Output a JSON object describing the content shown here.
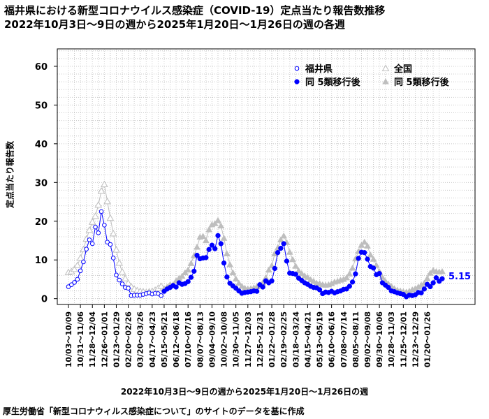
{
  "page": {
    "title_line1": "福井県における新型コロナウイルス感染症（COVID-19）定点当たり報告数推移",
    "title_line2": "2022年10月3日～9日の週から2025年1月20日～1月26日の週の各週",
    "source": "厚生労働省「新型コロナウィルス感染症について」のサイトのデータを基に作成"
  },
  "chart_data": {
    "type": "scatter",
    "xlabel": "2022年10月3日～9日の週から2025年1月20日～1月26日の週",
    "ylabel": "定点当たり報告数",
    "ylim": [
      -1.5,
      64.5
    ],
    "yticks": [
      0,
      10,
      20,
      30,
      40,
      50,
      60
    ],
    "grid": true,
    "legend_position": "top-right",
    "x_tick_labels": [
      "10/03～10/09",
      "10/31～11/06",
      "11/28～12/04",
      "12/26～01/01",
      "01/23～01/29",
      "02/20～02/26",
      "03/20～03/26",
      "04/17～04/23",
      "05/15～05/21",
      "06/12～06/18",
      "07/10～07/16",
      "08/07～08/13",
      "09/04～09/10",
      "10/02～10/08",
      "10/30～11/05",
      "11/27～12/03",
      "12/25～12/31",
      "01/22～01/28",
      "02/19～02/25",
      "03/18～03/24",
      "04/15～04/21",
      "05/13～05/19",
      "06/10～06/16",
      "07/08～07/14",
      "08/05～08/11",
      "09/02～09/08",
      "09/30～10/06",
      "10/28～11/03",
      "11/25～12/01",
      "12/23～12/29",
      "01/20～01/26"
    ],
    "x_tick_step_weeks": 4,
    "series": [
      {
        "name": "福井県",
        "marker": "open-circle",
        "color": "#0000ff",
        "x_start": 0,
        "values": [
          3.1,
          3.6,
          4.2,
          5.0,
          7.2,
          9.5,
          12.8,
          15.2,
          14.2,
          18.5,
          17.0,
          22.5,
          19.0,
          14.6,
          14.0,
          10.5,
          6.1,
          4.8,
          3.8,
          2.9,
          2.7,
          0.8,
          0.9,
          0.9,
          0.9,
          1.1,
          1.3,
          1.5,
          1.2,
          1.4,
          1.3,
          0.8
        ]
      },
      {
        "name": "同 5類移行後",
        "marker": "filled-circle",
        "color": "#0000ff",
        "x_start": 32,
        "values": [
          1.9,
          2.5,
          2.9,
          3.4,
          3.0,
          4.1,
          3.7,
          3.9,
          4.4,
          5.5,
          7.1,
          11.2,
          10.3,
          10.5,
          10.6,
          12.7,
          13.8,
          12.9,
          16.3,
          14.2,
          9.2,
          5.6,
          4.0,
          3.3,
          2.7,
          2.0,
          1.4,
          1.6,
          1.7,
          1.8,
          2.0,
          1.9,
          3.6,
          3.0,
          4.6,
          4.1,
          4.6,
          7.8,
          11.9,
          13.0,
          14.2,
          9.7,
          6.6,
          6.5,
          6.3,
          5.3,
          4.7,
          4.1,
          3.7,
          3.2,
          2.9,
          2.8,
          2.3,
          1.3,
          1.7,
          1.6,
          1.9,
          1.5,
          1.8,
          2.0,
          2.4,
          2.5,
          3.2,
          4.3,
          6.4,
          10.4,
          12.0,
          11.9,
          10.2,
          8.3,
          7.9,
          6.2,
          6.5,
          4.1,
          3.5,
          2.9,
          2.0,
          1.8,
          1.5,
          1.3,
          1.1,
          0.5,
          0.9,
          0.8,
          1.0,
          1.6,
          1.5,
          2.5,
          3.7,
          3.1,
          4.1,
          5.4,
          4.5,
          5.15
        ]
      },
      {
        "name": "全国",
        "marker": "open-triangle",
        "color": "#bebebe",
        "x_start": 0,
        "values": [
          6.8,
          7.0,
          7.6,
          8.6,
          10.5,
          12.7,
          15.4,
          17.7,
          19.8,
          21.3,
          24.2,
          27.8,
          29.5,
          25.1,
          20.8,
          16.8,
          12.6,
          9.2,
          6.9,
          5.2,
          4.0,
          3.1,
          2.5,
          2.1,
          1.9,
          1.8,
          1.6,
          1.8,
          1.9,
          2.2,
          2.7,
          3.2
        ]
      },
      {
        "name": "同 5類移行後",
        "marker": "filled-triangle",
        "color": "#bebebe",
        "x_start": 32,
        "values": [
          2.6,
          3.0,
          3.6,
          3.6,
          4.6,
          5.3,
          5.8,
          6.7,
          7.4,
          9.1,
          11.1,
          13.3,
          15.9,
          16.1,
          15.0,
          17.8,
          19.1,
          19.4,
          20.2,
          18.8,
          15.6,
          11.6,
          8.8,
          6.7,
          5.1,
          4.0,
          3.2,
          2.7,
          2.5,
          2.6,
          2.8,
          3.1,
          3.3,
          4.1,
          5.4,
          7.4,
          8.5,
          11.6,
          13.1,
          15.2,
          16.2,
          14.5,
          12.0,
          10.1,
          8.4,
          7.2,
          6.5,
          5.9,
          5.5,
          4.9,
          4.5,
          4.0,
          3.9,
          3.6,
          3.5,
          3.6,
          3.9,
          4.3,
          4.5,
          4.8,
          5.0,
          5.4,
          6.4,
          7.9,
          10.3,
          12.2,
          13.8,
          14.6,
          13.6,
          11.3,
          10.2,
          8.6,
          7.0,
          5.5,
          4.5,
          3.8,
          3.2,
          2.6,
          2.2,
          2.0,
          1.8,
          1.7,
          1.9,
          2.3,
          2.6,
          3.0,
          3.5,
          4.0,
          5.2,
          6.6,
          7.3,
          7.0,
          6.9,
          7.0
        ]
      }
    ],
    "last_value_label": "5.15"
  }
}
